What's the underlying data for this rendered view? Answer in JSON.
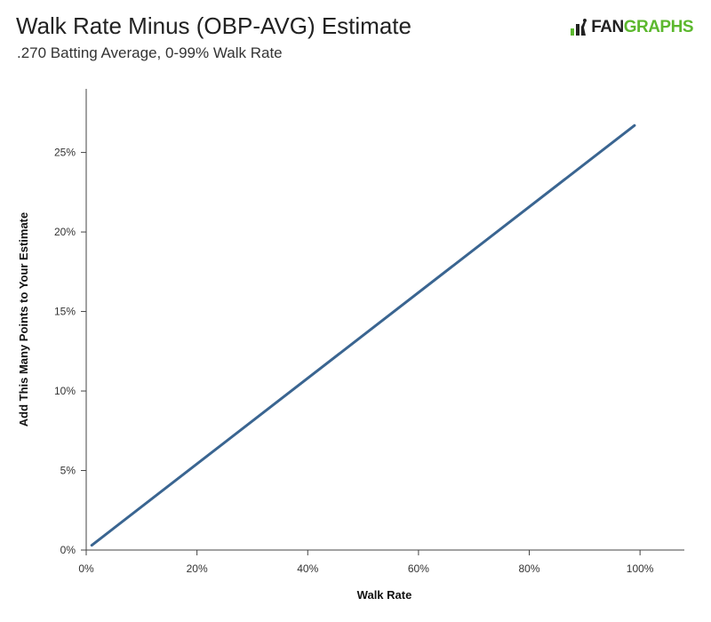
{
  "header": {
    "title": "Walk Rate Minus (OBP-AVG) Estimate",
    "subtitle": ".270 Batting Average, 0-99% Walk Rate"
  },
  "logo": {
    "text_left": "FAN",
    "text_right": "GRAPHS",
    "icon": "batter-silhouette-icon",
    "brand_color": "#5cb82e"
  },
  "chart_data": {
    "type": "line",
    "title": "Walk Rate Minus (OBP-AVG) Estimate",
    "subtitle": ".270 Batting Average, 0-99% Walk Rate",
    "xlabel": "Walk Rate",
    "ylabel": "Add This Many Points to Your Estimate",
    "xlim": [
      0,
      1.08
    ],
    "ylim": [
      0,
      0.29
    ],
    "xticks": [
      0,
      0.2,
      0.4,
      0.6,
      0.8,
      1.0
    ],
    "xtick_labels": [
      "0%",
      "20%",
      "40%",
      "60%",
      "80%",
      "100%"
    ],
    "yticks": [
      0,
      0.05,
      0.1,
      0.15,
      0.2,
      0.25
    ],
    "ytick_labels": [
      "0%",
      "5%",
      "10%",
      "15%",
      "20%",
      "25%"
    ],
    "grid": false,
    "series": [
      {
        "color": "#3a6591",
        "x": [
          0.01,
          0.99
        ],
        "y": [
          0.003,
          0.267
        ]
      }
    ]
  }
}
